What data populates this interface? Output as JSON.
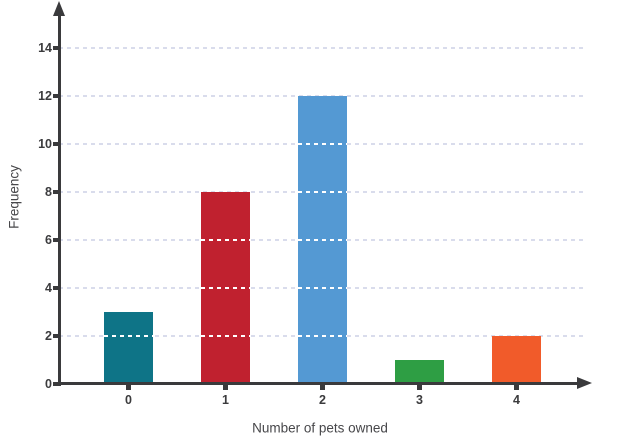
{
  "chart_data": {
    "type": "bar",
    "title": "",
    "categories": [
      "0",
      "1",
      "2",
      "3",
      "4"
    ],
    "values": [
      3,
      8,
      12,
      1,
      2
    ],
    "bar_colors": [
      "#0E7487",
      "#C0212F",
      "#5499D3",
      "#2E9E44",
      "#F15B2A"
    ],
    "xlabel": "Number of pets owned",
    "ylabel": "Frequency",
    "ylim": [
      0,
      15.5
    ],
    "yticks": [
      0,
      2,
      4,
      6,
      8,
      10,
      12,
      14
    ],
    "grid": {
      "horizontal": true,
      "style": "dashed",
      "color": "#D9DCEC",
      "color_over_bars": "#FFFFFF"
    },
    "axis_color": "#3A3A3C",
    "tick_label_color": "#3B3B3D",
    "axis_title_color": "#47474A",
    "background": "#FFFFFF",
    "legend": "none"
  }
}
